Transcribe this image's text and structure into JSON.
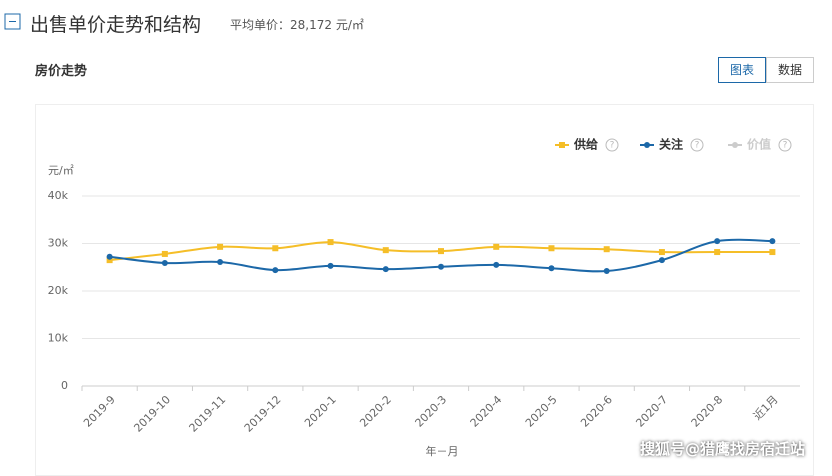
{
  "header": {
    "title": "出售单价走势和结构",
    "avg_label": "平均单价：",
    "avg_value": "28,172 元/㎡"
  },
  "section_title": "房价走势",
  "tabs": [
    "图表",
    "数据"
  ],
  "watermark": "搜狐号@猎鹰找房宿迁站",
  "chart_data": {
    "type": "line",
    "y_unit": "元/㎡",
    "x_label": "年－月",
    "categories": [
      "2019-9",
      "2019-10",
      "2019-11",
      "2019-12",
      "2020-1",
      "2020-2",
      "2020-3",
      "2020-4",
      "2020-5",
      "2020-6",
      "2020-7",
      "2020-8",
      "近1月"
    ],
    "series": [
      {
        "name": "供给",
        "color": "#f5be28",
        "marker": "square",
        "values": [
          26500,
          27800,
          29300,
          29000,
          30300,
          28600,
          28400,
          29300,
          29000,
          28800,
          28200,
          28200,
          28200
        ]
      },
      {
        "name": "关注",
        "color": "#1c68a8",
        "marker": "circle",
        "values": [
          27200,
          25900,
          26100,
          24400,
          25300,
          24600,
          25100,
          25500,
          24800,
          24200,
          26500,
          30500,
          30500
        ]
      },
      {
        "name": "价值",
        "color": "#cccccc",
        "marker": "circle",
        "values": [
          null,
          null,
          null,
          null,
          null,
          null,
          null,
          null,
          null,
          null,
          null,
          null,
          null
        ]
      }
    ],
    "ylim": [
      0,
      40000
    ],
    "yticks": [
      0,
      {
        "value": 10000,
        "label": "10k"
      },
      {
        "value": 20000,
        "label": "20k"
      },
      {
        "value": 30000,
        "label": "30k"
      },
      {
        "value": 40000,
        "label": "40k"
      }
    ],
    "grid": true
  }
}
